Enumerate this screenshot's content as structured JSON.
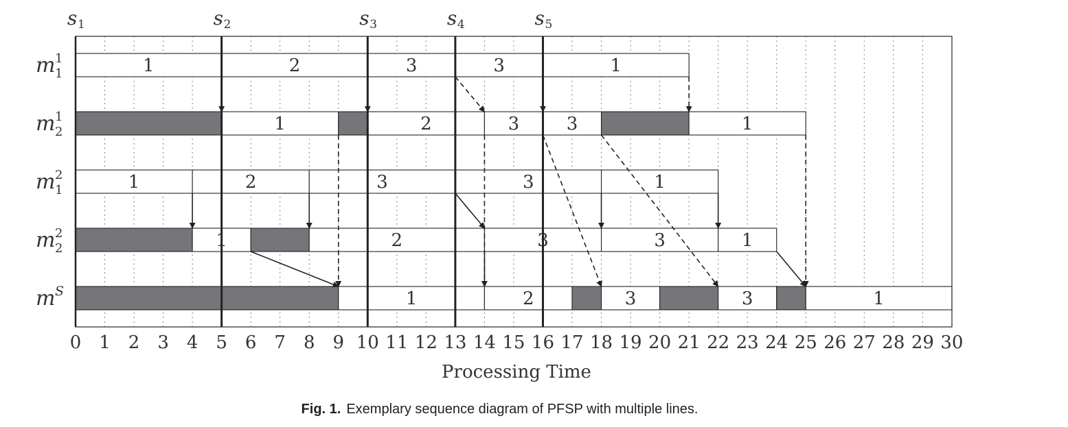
{
  "chart_data": {
    "type": "gantt",
    "xlabel": "Processing Time",
    "xlim": [
      0,
      30
    ],
    "ticks": [
      0,
      1,
      2,
      3,
      4,
      5,
      6,
      7,
      8,
      9,
      10,
      11,
      12,
      13,
      14,
      15,
      16,
      17,
      18,
      19,
      20,
      21,
      22,
      23,
      24,
      25,
      26,
      27,
      28,
      29,
      30
    ],
    "stages": [
      {
        "label": "s",
        "sub": "1",
        "t": 0
      },
      {
        "label": "s",
        "sub": "2",
        "t": 5
      },
      {
        "label": "s",
        "sub": "3",
        "t": 10
      },
      {
        "label": "s",
        "sub": "4",
        "t": 13
      },
      {
        "label": "s",
        "sub": "5",
        "t": 16
      }
    ],
    "rows": [
      {
        "label": "m",
        "sup": "1",
        "sub": "1",
        "blocks": [
          {
            "start": 0,
            "end": 5,
            "idle": false,
            "job": "1"
          },
          {
            "start": 5,
            "end": 10,
            "idle": false,
            "job": "2"
          },
          {
            "start": 10,
            "end": 13,
            "idle": false,
            "job": "3"
          },
          {
            "start": 13,
            "end": 16,
            "idle": false,
            "job": "3"
          },
          {
            "start": 16,
            "end": 21,
            "idle": false,
            "job": "1"
          }
        ]
      },
      {
        "label": "m",
        "sup": "1",
        "sub": "2",
        "blocks": [
          {
            "start": 0,
            "end": 5,
            "idle": true,
            "job": ""
          },
          {
            "start": 5,
            "end": 9,
            "idle": false,
            "job": "1"
          },
          {
            "start": 9,
            "end": 10,
            "idle": true,
            "job": ""
          },
          {
            "start": 10,
            "end": 14,
            "idle": false,
            "job": "2"
          },
          {
            "start": 14,
            "end": 16,
            "idle": false,
            "job": "3"
          },
          {
            "start": 16,
            "end": 18,
            "idle": false,
            "job": "3"
          },
          {
            "start": 18,
            "end": 21,
            "idle": true,
            "job": ""
          },
          {
            "start": 21,
            "end": 25,
            "idle": false,
            "job": "1"
          }
        ]
      },
      {
        "label": "m",
        "sup": "2",
        "sub": "1",
        "blocks": [
          {
            "start": 0,
            "end": 4,
            "idle": false,
            "job": "1"
          },
          {
            "start": 4,
            "end": 8,
            "idle": false,
            "job": "2"
          },
          {
            "start": 8,
            "end": 13,
            "idle": false,
            "job": "3"
          },
          {
            "start": 13,
            "end": 18,
            "idle": false,
            "job": "3"
          },
          {
            "start": 18,
            "end": 22,
            "idle": false,
            "job": "1"
          }
        ]
      },
      {
        "label": "m",
        "sup": "2",
        "sub": "2",
        "blocks": [
          {
            "start": 0,
            "end": 4,
            "idle": true,
            "job": ""
          },
          {
            "start": 4,
            "end": 6,
            "idle": false,
            "job": "1"
          },
          {
            "start": 6,
            "end": 8,
            "idle": true,
            "job": ""
          },
          {
            "start": 8,
            "end": 14,
            "idle": false,
            "job": "2"
          },
          {
            "start": 14,
            "end": 18,
            "idle": false,
            "job": "3"
          },
          {
            "start": 18,
            "end": 22,
            "idle": false,
            "job": "3"
          },
          {
            "start": 22,
            "end": 24,
            "idle": false,
            "job": "1"
          }
        ]
      },
      {
        "label": "m",
        "sup": "S",
        "sub": "",
        "blocks": [
          {
            "start": 0,
            "end": 9,
            "idle": true,
            "job": ""
          },
          {
            "start": 9,
            "end": 14,
            "idle": false,
            "job": "1"
          },
          {
            "start": 14,
            "end": 17,
            "idle": false,
            "job": "2"
          },
          {
            "start": 17,
            "end": 18,
            "idle": true,
            "job": ""
          },
          {
            "start": 18,
            "end": 20,
            "idle": false,
            "job": "3"
          },
          {
            "start": 20,
            "end": 22,
            "idle": true,
            "job": ""
          },
          {
            "start": 22,
            "end": 24,
            "idle": false,
            "job": "3"
          },
          {
            "start": 24,
            "end": 25,
            "idle": true,
            "job": ""
          },
          {
            "start": 25,
            "end": 30,
            "idle": false,
            "job": "1"
          }
        ]
      }
    ],
    "arrows": [
      {
        "from_row": 0,
        "t1": 5,
        "to_row": 1,
        "t2": 5,
        "dashed": false
      },
      {
        "from_row": 0,
        "t1": 10,
        "to_row": 1,
        "t2": 10,
        "dashed": false
      },
      {
        "from_row": 0,
        "t1": 13,
        "to_row": 1,
        "t2": 14,
        "dashed": true
      },
      {
        "from_row": 0,
        "t1": 16,
        "to_row": 1,
        "t2": 16,
        "dashed": false
      },
      {
        "from_row": 0,
        "t1": 21,
        "to_row": 1,
        "t2": 21,
        "dashed": true
      },
      {
        "from_row": 1,
        "t1": 9,
        "to_row": 4,
        "t2": 9,
        "dashed": true
      },
      {
        "from_row": 1,
        "t1": 14,
        "to_row": 4,
        "t2": 14,
        "dashed": true
      },
      {
        "from_row": 1,
        "t1": 16,
        "to_row": 4,
        "t2": 18,
        "dashed": true
      },
      {
        "from_row": 1,
        "t1": 18,
        "to_row": 4,
        "t2": 22,
        "dashed": true
      },
      {
        "from_row": 1,
        "t1": 25,
        "to_row": 4,
        "t2": 25,
        "dashed": true
      },
      {
        "from_row": 2,
        "t1": 4,
        "to_row": 3,
        "t2": 4,
        "dashed": false
      },
      {
        "from_row": 2,
        "t1": 8,
        "to_row": 3,
        "t2": 8,
        "dashed": false
      },
      {
        "from_row": 2,
        "t1": 13,
        "to_row": 3,
        "t2": 14,
        "dashed": false
      },
      {
        "from_row": 2,
        "t1": 18,
        "to_row": 3,
        "t2": 18,
        "dashed": false
      },
      {
        "from_row": 2,
        "t1": 22,
        "to_row": 3,
        "t2": 22,
        "dashed": false
      },
      {
        "from_row": 3,
        "t1": 6,
        "to_row": 4,
        "t2": 9,
        "dashed": false
      },
      {
        "from_row": 3,
        "t1": 14,
        "to_row": 4,
        "t2": 14,
        "dashed": false
      },
      {
        "from_row": 3,
        "t1": 24,
        "to_row": 4,
        "t2": 25,
        "dashed": false
      }
    ],
    "colors": {
      "idle": "#76767a",
      "block": "#ffffff",
      "line": "#222222"
    }
  },
  "caption": {
    "label": "Fig. 1.",
    "text": "Exemplary sequence diagram of PFSP with multiple lines."
  }
}
